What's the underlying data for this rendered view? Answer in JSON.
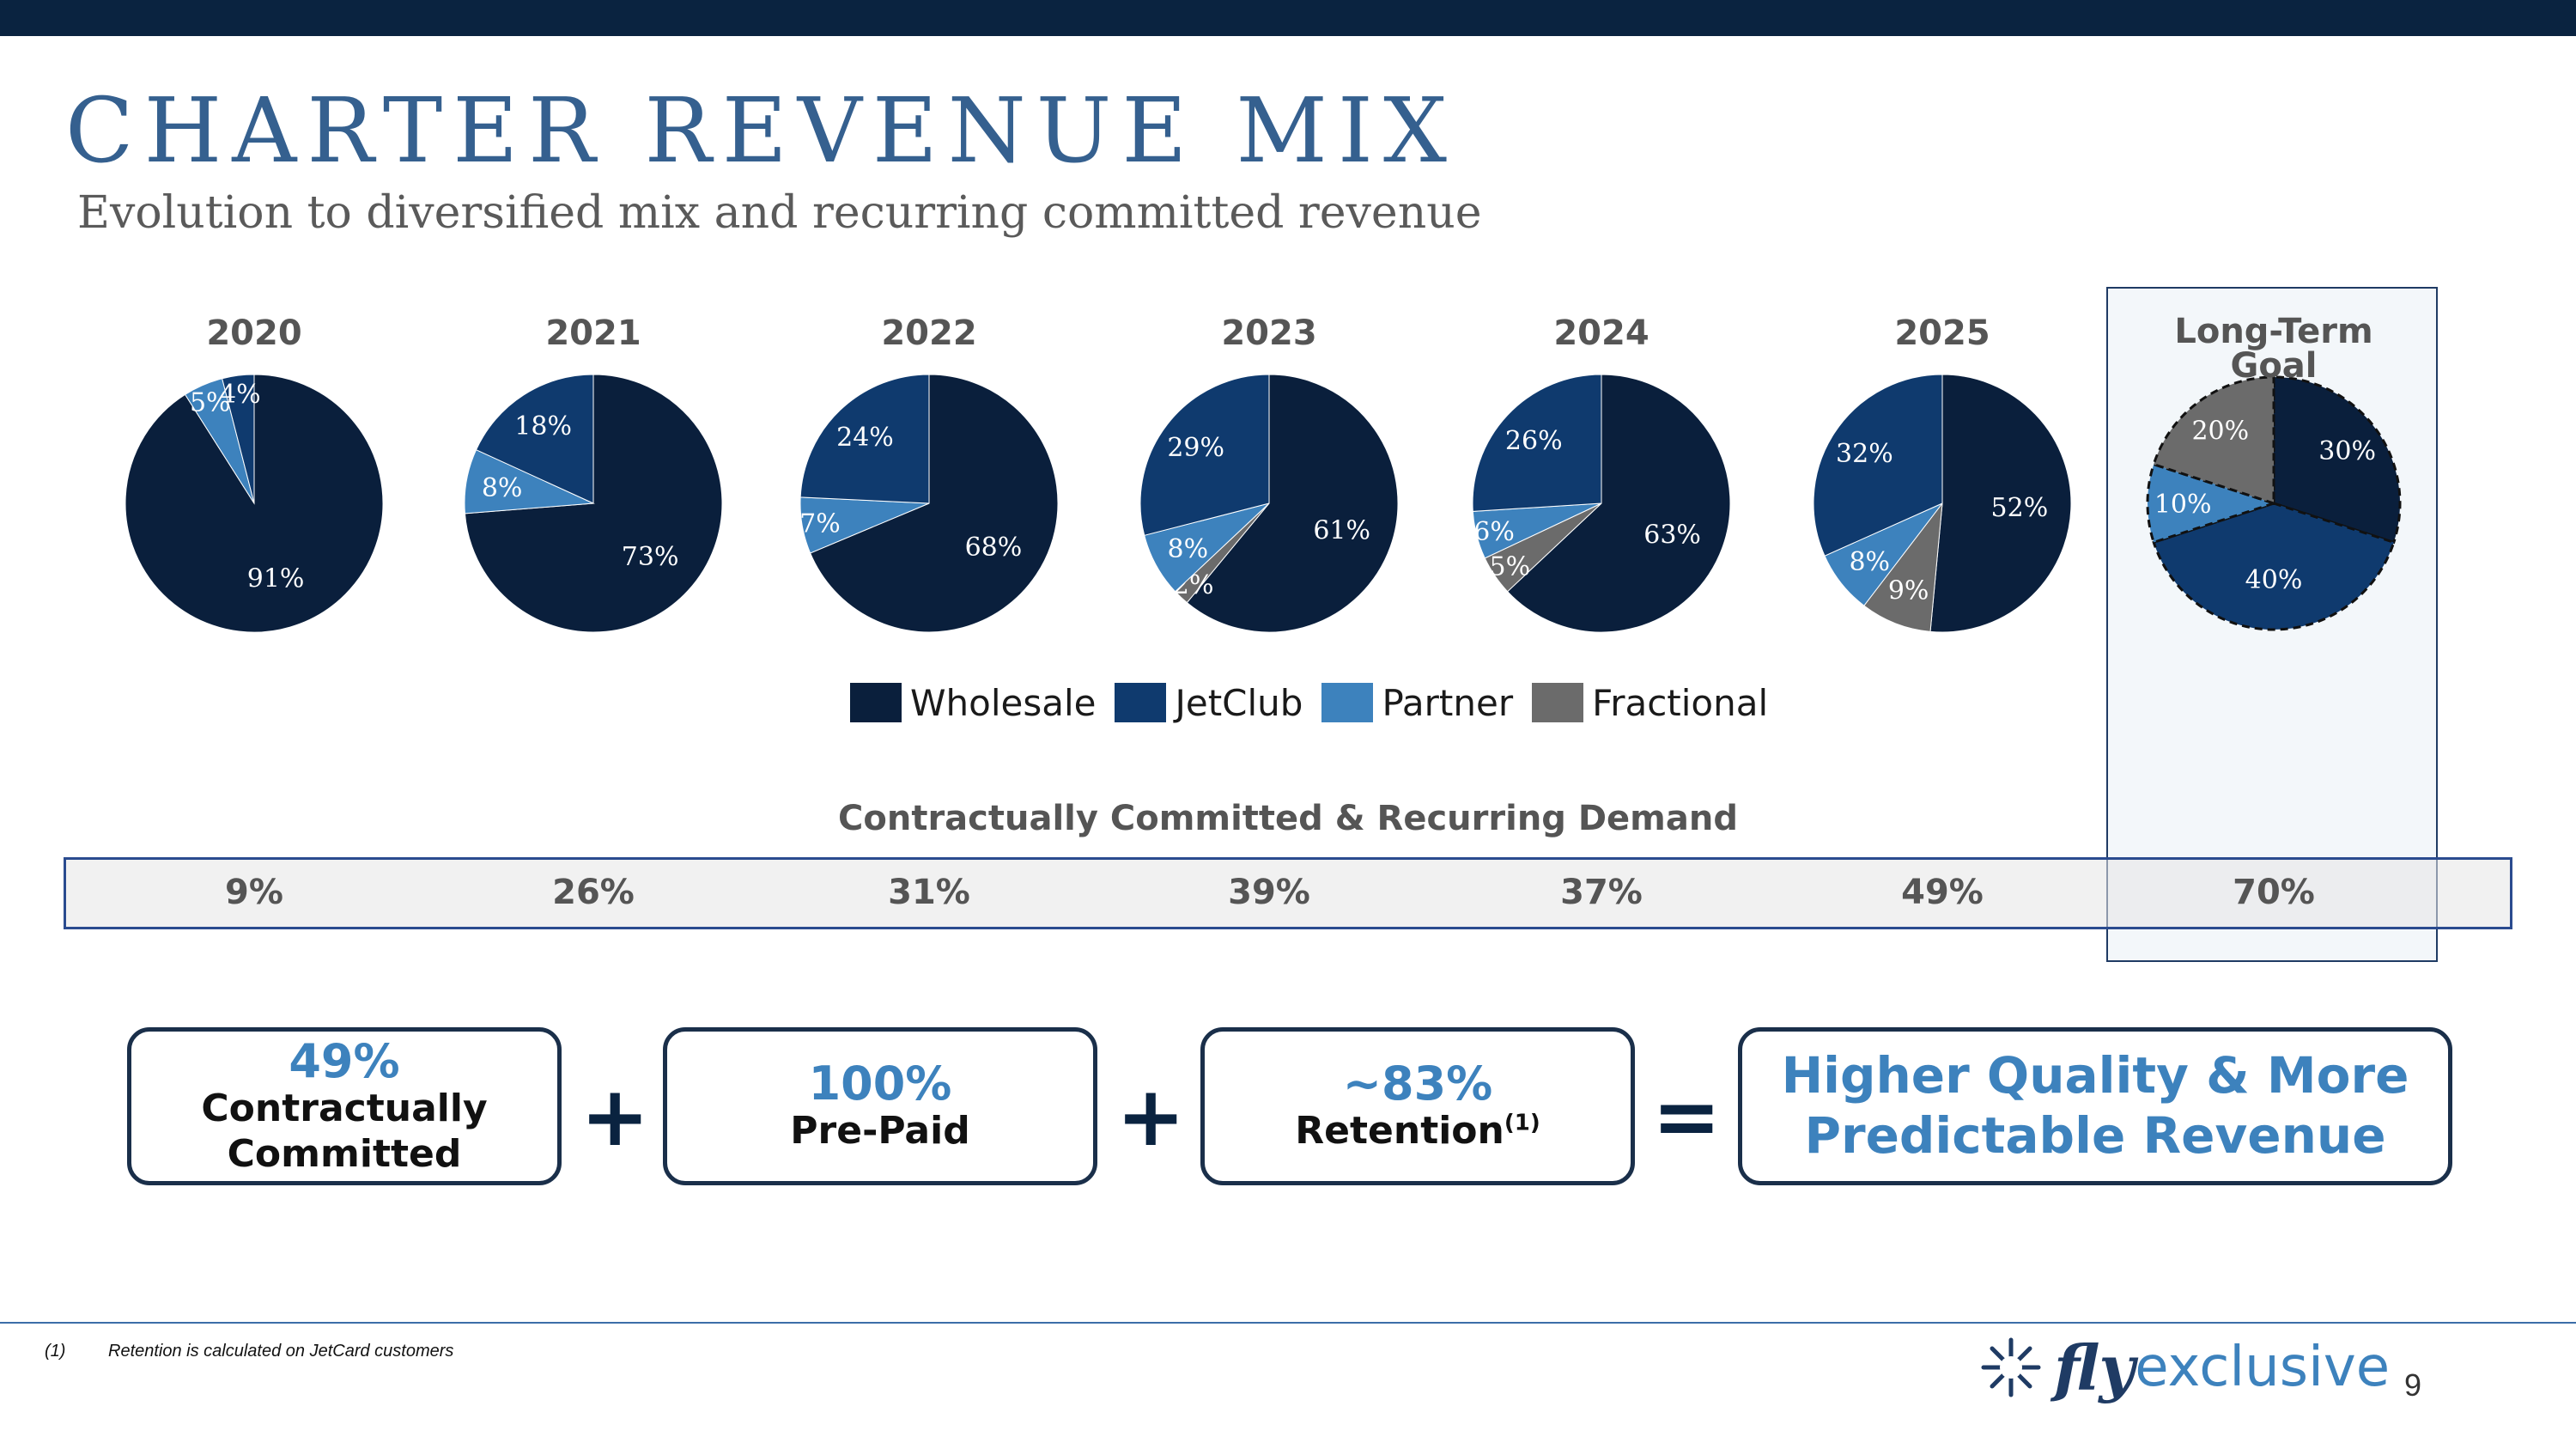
{
  "header": {
    "title": "CHARTER REVENUE MIX",
    "subtitle": "Evolution to diversified mix and recurring committed revenue"
  },
  "colors": {
    "wholesale": "#0a1f3c",
    "jetclub": "#0f3a6e",
    "partner": "#3d82bd",
    "fractional": "#6b6b6b",
    "accent_blue": "#3d82bd",
    "navy": "#0a2340"
  },
  "chart_data": {
    "type": "pie",
    "series_names": [
      "Wholesale",
      "JetClub",
      "Partner",
      "Fractional"
    ],
    "pies": [
      {
        "label": "2020",
        "values": {
          "Wholesale": 91,
          "JetClub": 4,
          "Partner": 5,
          "Fractional": 0
        }
      },
      {
        "label": "2021",
        "values": {
          "Wholesale": 73,
          "JetClub": 18,
          "Partner": 8,
          "Fractional": 0
        }
      },
      {
        "label": "2022",
        "values": {
          "Wholesale": 68,
          "JetClub": 24,
          "Partner": 7,
          "Fractional": 0
        }
      },
      {
        "label": "2023",
        "values": {
          "Wholesale": 61,
          "JetClub": 29,
          "Partner": 8,
          "Fractional": 2
        }
      },
      {
        "label": "2024",
        "values": {
          "Wholesale": 63,
          "JetClub": 26,
          "Partner": 6,
          "Fractional": 5
        }
      },
      {
        "label": "2025",
        "values": {
          "Wholesale": 52,
          "JetClub": 32,
          "Partner": 8,
          "Fractional": 9
        }
      },
      {
        "label": "Long-Term Goal",
        "values": {
          "Wholesale": 30,
          "JetClub": 40,
          "Partner": 10,
          "Fractional": 20
        }
      }
    ]
  },
  "demand": {
    "title": "Contractually Committed & Recurring Demand",
    "values": [
      "9%",
      "26%",
      "31%",
      "39%",
      "37%",
      "49%",
      "70%"
    ]
  },
  "boxes": [
    {
      "big": "49%",
      "small_line1": "Contractually",
      "small_line2": "Committed"
    },
    {
      "big": "100%",
      "small_line1": "Pre-Paid"
    },
    {
      "big": "~83%",
      "small_line1": "Retention",
      "sup": "(1)"
    },
    {
      "line1": "Higher Quality & More",
      "line2": "Predictable Revenue"
    }
  ],
  "operators": {
    "plus": "+",
    "equals": "="
  },
  "footnote": {
    "number": "(1)",
    "text": "Retention is calculated on JetCard customers"
  },
  "logo": {
    "fly": "fly",
    "exclusive": "exclusive"
  },
  "page_number": "9"
}
